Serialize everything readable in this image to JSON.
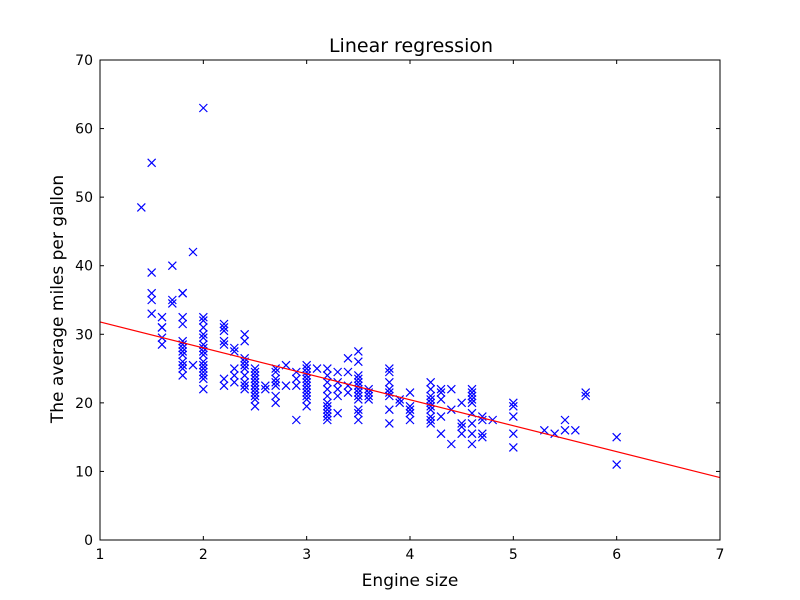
{
  "chart_data": {
    "type": "scatter",
    "title": "Linear regression",
    "xlabel": "Engine size",
    "ylabel": "The average miles per gallon",
    "xlim": [
      1,
      7
    ],
    "ylim": [
      0,
      70
    ],
    "xticks": [
      "1",
      "2",
      "3",
      "4",
      "5",
      "6",
      "7"
    ],
    "yticks": [
      "0",
      "10",
      "20",
      "30",
      "40",
      "50",
      "60",
      "70"
    ],
    "grid": false,
    "legend": "none",
    "marker": "x",
    "colors": {
      "points": "#0000ff",
      "line": "#ff0000",
      "axes": "#000000"
    },
    "series": [
      {
        "marker": "x",
        "points": [
          [
            1.4,
            48.5
          ],
          [
            1.5,
            55.0
          ],
          [
            1.5,
            39.0
          ],
          [
            1.5,
            36.0
          ],
          [
            1.5,
            35.0
          ],
          [
            1.5,
            33.0
          ],
          [
            1.6,
            32.5
          ],
          [
            1.6,
            31.0
          ],
          [
            1.6,
            31.0
          ],
          [
            1.6,
            29.5
          ],
          [
            1.6,
            28.5
          ],
          [
            1.7,
            40.0
          ],
          [
            1.7,
            35.0
          ],
          [
            1.7,
            34.5
          ],
          [
            1.8,
            36.0
          ],
          [
            1.8,
            36.0
          ],
          [
            1.8,
            32.5
          ],
          [
            1.8,
            31.5
          ],
          [
            1.8,
            29.0
          ],
          [
            1.8,
            28.5
          ],
          [
            1.8,
            28.0
          ],
          [
            1.8,
            27.5
          ],
          [
            1.8,
            27.0
          ],
          [
            1.8,
            26.0
          ],
          [
            1.8,
            25.5
          ],
          [
            1.8,
            25.0
          ],
          [
            1.8,
            24.0
          ],
          [
            1.9,
            42.0
          ],
          [
            1.9,
            25.5
          ],
          [
            2.0,
            63.0
          ],
          [
            2.0,
            32.5
          ],
          [
            2.0,
            32.0
          ],
          [
            2.0,
            31.0
          ],
          [
            2.0,
            30.0
          ],
          [
            2.0,
            29.5
          ],
          [
            2.0,
            28.5
          ],
          [
            2.0,
            28.0
          ],
          [
            2.0,
            27.5
          ],
          [
            2.0,
            27.0
          ],
          [
            2.0,
            26.0
          ],
          [
            2.0,
            25.5
          ],
          [
            2.0,
            25.0
          ],
          [
            2.0,
            24.5
          ],
          [
            2.0,
            24.0
          ],
          [
            2.0,
            23.5
          ],
          [
            2.0,
            22.0
          ],
          [
            2.2,
            31.5
          ],
          [
            2.2,
            31.0
          ],
          [
            2.2,
            30.5
          ],
          [
            2.2,
            29.0
          ],
          [
            2.2,
            28.5
          ],
          [
            2.2,
            23.5
          ],
          [
            2.2,
            22.5
          ],
          [
            2.3,
            28.0
          ],
          [
            2.3,
            27.5
          ],
          [
            2.3,
            25.0
          ],
          [
            2.3,
            24.0
          ],
          [
            2.3,
            23.0
          ],
          [
            2.4,
            30.0
          ],
          [
            2.4,
            29.0
          ],
          [
            2.4,
            26.5
          ],
          [
            2.4,
            26.0
          ],
          [
            2.4,
            25.5
          ],
          [
            2.4,
            25.0
          ],
          [
            2.4,
            24.0
          ],
          [
            2.4,
            23.0
          ],
          [
            2.4,
            22.5
          ],
          [
            2.4,
            22.0
          ],
          [
            2.5,
            25.0
          ],
          [
            2.5,
            24.5
          ],
          [
            2.5,
            24.0
          ],
          [
            2.5,
            23.5
          ],
          [
            2.5,
            23.0
          ],
          [
            2.5,
            22.5
          ],
          [
            2.5,
            22.0
          ],
          [
            2.5,
            21.5
          ],
          [
            2.5,
            21.0
          ],
          [
            2.5,
            20.5
          ],
          [
            2.5,
            19.5
          ],
          [
            2.6,
            22.0
          ],
          [
            2.6,
            22.5
          ],
          [
            2.7,
            25.0
          ],
          [
            2.7,
            24.5
          ],
          [
            2.7,
            23.5
          ],
          [
            2.7,
            23.0
          ],
          [
            2.7,
            22.5
          ],
          [
            2.7,
            21.0
          ],
          [
            2.7,
            20.0
          ],
          [
            2.8,
            25.5
          ],
          [
            2.8,
            22.5
          ],
          [
            2.9,
            24.5
          ],
          [
            2.9,
            23.5
          ],
          [
            2.9,
            22.5
          ],
          [
            2.9,
            17.5
          ],
          [
            3.0,
            25.5
          ],
          [
            3.0,
            25.0
          ],
          [
            3.0,
            24.5
          ],
          [
            3.0,
            24.0
          ],
          [
            3.0,
            23.5
          ],
          [
            3.0,
            23.0
          ],
          [
            3.0,
            22.5
          ],
          [
            3.0,
            22.0
          ],
          [
            3.0,
            21.5
          ],
          [
            3.0,
            21.0
          ],
          [
            3.0,
            20.5
          ],
          [
            3.0,
            19.5
          ],
          [
            3.1,
            25.0
          ],
          [
            3.2,
            25.0
          ],
          [
            3.2,
            24.0
          ],
          [
            3.2,
            23.0
          ],
          [
            3.2,
            22.0
          ],
          [
            3.2,
            21.0
          ],
          [
            3.2,
            20.0
          ],
          [
            3.2,
            19.5
          ],
          [
            3.2,
            19.0
          ],
          [
            3.2,
            18.5
          ],
          [
            3.2,
            18.0
          ],
          [
            3.2,
            17.5
          ],
          [
            3.3,
            24.5
          ],
          [
            3.3,
            23.0
          ],
          [
            3.3,
            22.0
          ],
          [
            3.3,
            21.0
          ],
          [
            3.3,
            18.5
          ],
          [
            3.4,
            26.5
          ],
          [
            3.4,
            24.5
          ],
          [
            3.4,
            22.5
          ],
          [
            3.4,
            21.5
          ],
          [
            3.5,
            27.5
          ],
          [
            3.5,
            26.0
          ],
          [
            3.5,
            24.0
          ],
          [
            3.5,
            23.5
          ],
          [
            3.5,
            23.0
          ],
          [
            3.5,
            22.5
          ],
          [
            3.5,
            22.0
          ],
          [
            3.5,
            21.5
          ],
          [
            3.5,
            21.0
          ],
          [
            3.5,
            20.5
          ],
          [
            3.5,
            19.0
          ],
          [
            3.5,
            18.5
          ],
          [
            3.5,
            17.5
          ],
          [
            3.6,
            22.0
          ],
          [
            3.6,
            21.5
          ],
          [
            3.6,
            21.0
          ],
          [
            3.6,
            20.5
          ],
          [
            3.8,
            25.0
          ],
          [
            3.8,
            24.5
          ],
          [
            3.8,
            23.0
          ],
          [
            3.8,
            22.0
          ],
          [
            3.8,
            21.5
          ],
          [
            3.8,
            21.0
          ],
          [
            3.8,
            19.0
          ],
          [
            3.8,
            17.0
          ],
          [
            3.9,
            20.5
          ],
          [
            3.9,
            20.0
          ],
          [
            4.0,
            21.5
          ],
          [
            4.0,
            19.5
          ],
          [
            4.0,
            19.0
          ],
          [
            4.0,
            18.5
          ],
          [
            4.0,
            17.5
          ],
          [
            4.2,
            23.0
          ],
          [
            4.2,
            22.0
          ],
          [
            4.2,
            21.0
          ],
          [
            4.2,
            20.5
          ],
          [
            4.2,
            20.0
          ],
          [
            4.2,
            19.5
          ],
          [
            4.2,
            19.0
          ],
          [
            4.2,
            18.0
          ],
          [
            4.2,
            17.5
          ],
          [
            4.2,
            17.0
          ],
          [
            4.3,
            22.0
          ],
          [
            4.3,
            21.5
          ],
          [
            4.3,
            20.5
          ],
          [
            4.3,
            18.0
          ],
          [
            4.3,
            15.5
          ],
          [
            4.4,
            22.0
          ],
          [
            4.4,
            19.0
          ],
          [
            4.4,
            14.0
          ],
          [
            4.5,
            20.0
          ],
          [
            4.5,
            17.0
          ],
          [
            4.5,
            16.5
          ],
          [
            4.5,
            15.5
          ],
          [
            4.6,
            22.0
          ],
          [
            4.6,
            21.5
          ],
          [
            4.6,
            21.0
          ],
          [
            4.6,
            20.5
          ],
          [
            4.6,
            20.0
          ],
          [
            4.6,
            18.5
          ],
          [
            4.6,
            17.0
          ],
          [
            4.6,
            15.5
          ],
          [
            4.6,
            14.0
          ],
          [
            4.7,
            18.0
          ],
          [
            4.7,
            17.5
          ],
          [
            4.7,
            15.5
          ],
          [
            4.7,
            15.0
          ],
          [
            4.8,
            17.5
          ],
          [
            5.0,
            20.0
          ],
          [
            5.0,
            19.5
          ],
          [
            5.0,
            18.0
          ],
          [
            5.0,
            15.5
          ],
          [
            5.0,
            13.5
          ],
          [
            5.3,
            16.0
          ],
          [
            5.4,
            15.5
          ],
          [
            5.5,
            17.5
          ],
          [
            5.5,
            16.0
          ],
          [
            5.6,
            16.0
          ],
          [
            5.7,
            21.5
          ],
          [
            5.7,
            21.0
          ],
          [
            6.0,
            15.0
          ],
          [
            6.0,
            11.0
          ]
        ]
      }
    ],
    "regression_line": {
      "x": [
        1,
        7
      ],
      "y": [
        31.8,
        9.1
      ]
    }
  }
}
